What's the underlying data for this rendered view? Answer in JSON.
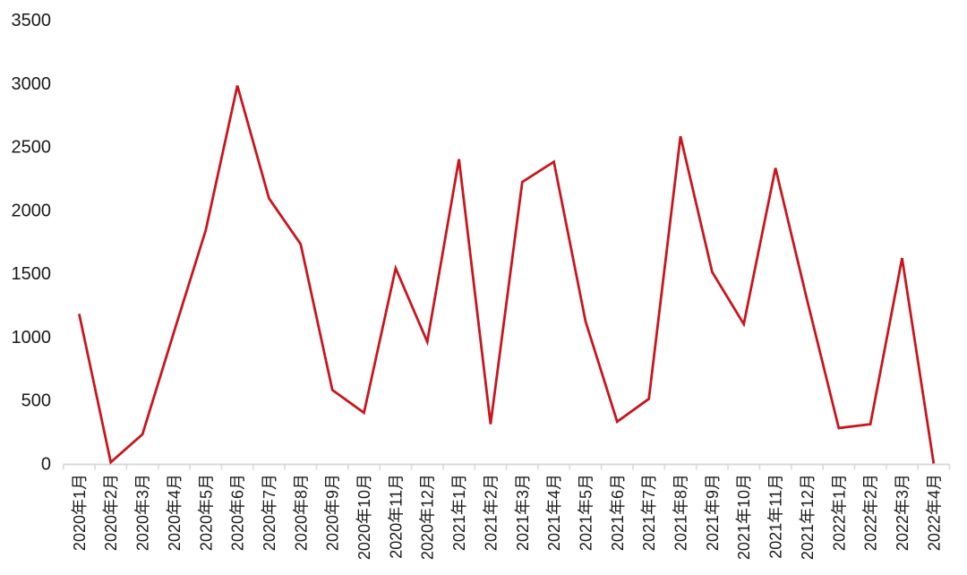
{
  "chart_data": {
    "type": "line",
    "title": "",
    "xlabel": "",
    "ylabel": "",
    "categories": [
      "2020年1月",
      "2020年2月",
      "2020年3月",
      "2020年4月",
      "2020年5月",
      "2020年6月",
      "2020年7月",
      "2020年8月",
      "2020年9月",
      "2020年10月",
      "2020年11月",
      "2020年12月",
      "2021年1月",
      "2021年2月",
      "2021年3月",
      "2021年4月",
      "2021年5月",
      "2021年6月",
      "2021年7月",
      "2021年8月",
      "2021年9月",
      "2021年10月",
      "2021年11月",
      "2021年12月",
      "2022年1月",
      "2022年2月",
      "2022年3月",
      "2022年4月"
    ],
    "values": [
      1180,
      10,
      230,
      1040,
      1840,
      2980,
      2090,
      1730,
      580,
      400,
      1540,
      960,
      2400,
      310,
      2220,
      2380,
      1120,
      330,
      510,
      2580,
      1510,
      1100,
      2330,
      1290,
      280,
      310,
      1620,
      0
    ],
    "ylim": [
      0,
      3500
    ],
    "yticks": [
      0,
      500,
      1000,
      1500,
      2000,
      2500,
      3000,
      3500
    ],
    "grid": false,
    "legend": false
  },
  "colors": {
    "line": "#c8161e",
    "axis": "#d9d9d9",
    "label": "#1a1a1a",
    "background": "#ffffff"
  }
}
